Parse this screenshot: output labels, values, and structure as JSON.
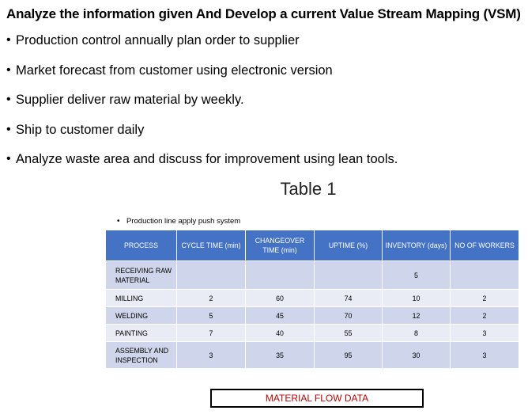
{
  "title": "Analyze the information given And Develop a current Value Stream Mapping (VSM)",
  "bullets": [
    "Production control annually plan order to supplier",
    "Market forecast from customer using electronic version",
    "Supplier deliver raw material by weekly.",
    "Ship to customer daily",
    "Analyze waste area and discuss for improvement using lean tools."
  ],
  "table_caption": "Table 1",
  "push_note": "Production line apply push system",
  "table": {
    "headers": [
      "PROCESS",
      "CYCLE TIME (min)",
      "CHANGEOVER TIME (min)",
      "UPTIME (%)",
      "INVENTORY (days)",
      "NO OF WORKERS"
    ],
    "rows": [
      [
        "RECEIVING RAW MATERIAL",
        "",
        "",
        "",
        "5",
        ""
      ],
      [
        "MILLING",
        "2",
        "60",
        "74",
        "10",
        "2"
      ],
      [
        "WELDING",
        "5",
        "45",
        "70",
        "12",
        "2"
      ],
      [
        "PAINTING",
        "7",
        "40",
        "55",
        "8",
        "3"
      ],
      [
        "ASSEMBLY AND INSPECTION",
        "3",
        "35",
        "95",
        "30",
        "3"
      ]
    ]
  },
  "flow_label": "MATERIAL FLOW DATA",
  "colors": {
    "header": "#4472c4",
    "row_odd": "#cfd5ea",
    "row_even": "#e9ebf5",
    "flow_label": "#c00000"
  }
}
